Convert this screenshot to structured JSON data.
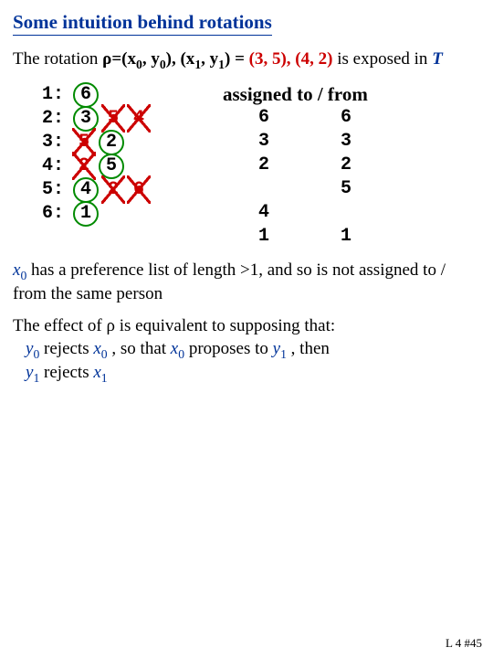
{
  "title": "Some intuition behind rotations",
  "intro": {
    "prefix": "The rotation ",
    "rho": "ρ",
    "eqprefix": "=(x",
    "sub0a": "0",
    "mid1": ", y",
    "sub0b": "0",
    "mid2": "), (x",
    "sub1a": "1",
    "mid3": ", y",
    "sub1b": "1",
    "mid4": ") = ",
    "val": "(3, 5), (4, 2)",
    "tail": " is exposed in ",
    "T": "T"
  },
  "prefs": {
    "row_labels": [
      "1:",
      "2:",
      "3:",
      "4:",
      "5:",
      "6:"
    ],
    "cells": [
      [
        {
          "v": "6",
          "circled": true
        }
      ],
      [
        {
          "v": "3",
          "circled": true
        },
        {
          "v": "5",
          "strike": true
        },
        {
          "v": "4",
          "strike": true
        }
      ],
      [
        {
          "v": "5",
          "strike": true
        },
        {
          "v": "2",
          "circled": true
        }
      ],
      [
        {
          "v": "2",
          "strike": true
        },
        {
          "v": "5",
          "circled": true
        }
      ],
      [
        {
          "v": "4",
          "circled": true
        },
        {
          "v": "2",
          "strike": true
        },
        {
          "v": "6",
          "strike": true
        }
      ],
      [
        {
          "v": "1",
          "circled": true
        }
      ]
    ]
  },
  "assigned": {
    "header": "assigned to / from",
    "rows": [
      [
        "6",
        "6"
      ],
      [
        "3",
        "3"
      ],
      [
        "2",
        "2"
      ],
      [
        "",
        "5"
      ],
      [
        "4",
        ""
      ],
      [
        "1",
        "1"
      ]
    ]
  },
  "para1": {
    "x": "x",
    "sub0": "0",
    "rest": " has a preference list of length >1, and so is not assigned to / from the same person"
  },
  "para2": {
    "l1a": "The effect of ",
    "rho": "ρ",
    "l1b": " is equivalent to supposing that:",
    "l2a": "y",
    "s0a": "0",
    "l2b": " rejects ",
    "l2c": "x",
    "s0b": "0",
    "l2d": " , so that ",
    "l2e": "x",
    "s0c": "0",
    "l2f": " proposes to ",
    "l2g": "y",
    "s1a": "1",
    "l2h": " , then",
    "l3a": "y",
    "s1b": "1",
    "l3b": " rejects ",
    "l3c": "x",
    "s1c": "1"
  },
  "footer": "L 4 #45"
}
